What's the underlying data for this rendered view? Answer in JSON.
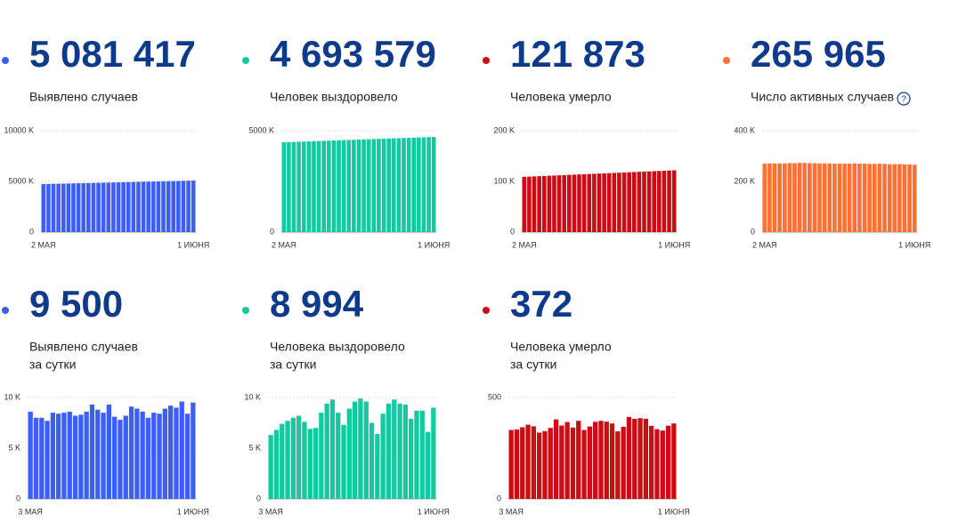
{
  "chart_data": [
    {
      "type": "bar",
      "value": "5 081 417",
      "label": [
        "Выявлено случаев"
      ],
      "color": "#3b5ef6",
      "categories": [
        "2 МАЯ",
        null,
        null,
        null,
        null,
        null,
        null,
        null,
        null,
        null,
        null,
        null,
        null,
        null,
        null,
        null,
        null,
        null,
        null,
        null,
        null,
        null,
        null,
        null,
        null,
        null,
        null,
        null,
        null,
        null,
        "1 ИЮНЯ"
      ],
      "values": [
        4737,
        4748,
        4760,
        4771,
        4783,
        4794,
        4806,
        4817,
        4829,
        4840,
        4852,
        4863,
        4875,
        4886,
        4898,
        4909,
        4921,
        4932,
        4944,
        4955,
        4967,
        4978,
        4990,
        5001,
        5013,
        5024,
        5036,
        5047,
        5059,
        5070,
        5081
      ],
      "ylim": [
        0,
        10000
      ],
      "yticks": [
        0,
        {
          "value": 5000,
          "label": "5000 K"
        },
        {
          "value": 10000,
          "label": "10000 K"
        }
      ],
      "grid": true
    },
    {
      "type": "bar",
      "value": "4 693 579",
      "label": [
        "Человек выздоровело"
      ],
      "color": "#13c9a1",
      "categories": [
        "2 МАЯ",
        null,
        null,
        null,
        null,
        null,
        null,
        null,
        null,
        null,
        null,
        null,
        null,
        null,
        null,
        null,
        null,
        null,
        null,
        null,
        null,
        null,
        null,
        null,
        null,
        null,
        null,
        null,
        null,
        null,
        "1 ИЮНЯ"
      ],
      "values": [
        4430,
        4439,
        4448,
        4456,
        4465,
        4474,
        4483,
        4492,
        4500,
        4509,
        4518,
        4527,
        4536,
        4544,
        4553,
        4562,
        4571,
        4580,
        4588,
        4597,
        4606,
        4615,
        4624,
        4632,
        4641,
        4650,
        4659,
        4668,
        4676,
        4685,
        4694
      ],
      "ylim": [
        0,
        5000
      ],
      "yticks": [
        0,
        {
          "value": 5000,
          "label": "5000 K"
        }
      ],
      "grid": true
    },
    {
      "type": "bar",
      "value": "121 873",
      "label": [
        "Человека умерло"
      ],
      "color": "#cc0b13",
      "categories": [
        "2 МАЯ",
        null,
        null,
        null,
        null,
        null,
        null,
        null,
        null,
        null,
        null,
        null,
        null,
        null,
        null,
        null,
        null,
        null,
        null,
        null,
        null,
        null,
        null,
        null,
        null,
        null,
        null,
        null,
        null,
        null,
        "1 ИЮНЯ"
      ],
      "values": [
        109.0,
        109.4,
        109.9,
        110.3,
        110.7,
        111.2,
        111.6,
        112.0,
        112.4,
        112.9,
        113.3,
        113.7,
        114.2,
        114.6,
        115.0,
        115.5,
        115.9,
        116.3,
        116.7,
        117.2,
        117.6,
        118.0,
        118.5,
        118.9,
        119.3,
        119.8,
        120.2,
        120.6,
        121.0,
        121.5,
        121.9
      ],
      "ylim": [
        0,
        200
      ],
      "yticks": [
        0,
        {
          "value": 100,
          "label": "100 K"
        },
        {
          "value": 200,
          "label": "200 K"
        }
      ],
      "grid": true
    },
    {
      "type": "bar",
      "value": "265 965",
      "label": [
        "Число активных случаев"
      ],
      "info_icon": "?",
      "color": "#ff7034",
      "categories": [
        "2 МАЯ",
        null,
        null,
        null,
        null,
        null,
        null,
        null,
        null,
        null,
        null,
        null,
        null,
        null,
        null,
        null,
        null,
        null,
        null,
        null,
        null,
        null,
        null,
        null,
        null,
        null,
        null,
        null,
        null,
        null,
        "1 ИЮНЯ"
      ],
      "values": [
        270,
        271,
        271,
        271,
        271,
        272,
        272,
        273,
        273,
        272,
        272,
        271,
        271,
        271,
        270,
        270,
        270,
        270,
        271,
        270,
        270,
        269,
        269,
        270,
        269,
        268,
        268,
        268,
        267,
        267,
        266
      ],
      "ylim": [
        0,
        400
      ],
      "yticks": [
        0,
        {
          "value": 200,
          "label": "200 K"
        },
        {
          "value": 400,
          "label": "400 K"
        }
      ],
      "grid": true
    },
    {
      "type": "bar",
      "value": "9 500",
      "label": [
        "Выявлено случаев",
        "за сутки"
      ],
      "color": "#3b5ef6",
      "categories": [
        "3 МАЯ",
        null,
        null,
        null,
        null,
        null,
        null,
        null,
        null,
        null,
        null,
        null,
        null,
        null,
        null,
        null,
        null,
        null,
        null,
        null,
        null,
        null,
        null,
        null,
        null,
        null,
        null,
        null,
        null,
        "1 ИЮНЯ"
      ],
      "values": [
        8.6,
        8.0,
        8.0,
        7.7,
        8.5,
        8.4,
        8.5,
        8.6,
        8.2,
        8.3,
        8.6,
        9.3,
        8.8,
        8.5,
        9.3,
        8.1,
        7.8,
        8.2,
        9.1,
        8.9,
        8.6,
        8.0,
        8.5,
        8.4,
        8.9,
        9.2,
        9.0,
        9.6,
        8.4,
        9.5
      ],
      "ylim": [
        0,
        10
      ],
      "yticks": [
        0,
        {
          "value": 5,
          "label": "5 K"
        },
        {
          "value": 10,
          "label": "10 K"
        }
      ],
      "grid": true
    },
    {
      "type": "bar",
      "value": "8 994",
      "label": [
        "Человека выздоровело",
        "за сутки"
      ],
      "color": "#13c9a1",
      "categories": [
        "3 МАЯ",
        null,
        null,
        null,
        null,
        null,
        null,
        null,
        null,
        null,
        null,
        null,
        null,
        null,
        null,
        null,
        null,
        null,
        null,
        null,
        null,
        null,
        null,
        null,
        null,
        null,
        null,
        null,
        null,
        "1 ИЮНЯ"
      ],
      "values": [
        6.3,
        6.8,
        7.4,
        7.7,
        8.0,
        8.2,
        7.6,
        6.9,
        7.0,
        8.5,
        9.4,
        9.8,
        8.5,
        7.3,
        8.9,
        9.6,
        9.9,
        9.6,
        7.5,
        6.4,
        8.4,
        9.4,
        9.8,
        9.4,
        9.3,
        7.9,
        8.7,
        8.7,
        6.6,
        9.0
      ],
      "ylim": [
        0,
        10
      ],
      "yticks": [
        0,
        {
          "value": 5,
          "label": "5 K"
        },
        {
          "value": 10,
          "label": "10 K"
        }
      ],
      "grid": true
    },
    {
      "type": "bar",
      "value": "372",
      "label": [
        "Человека умерло",
        "за сутки"
      ],
      "color": "#cc0b13",
      "categories": [
        "3 МАЯ",
        null,
        null,
        null,
        null,
        null,
        null,
        null,
        null,
        null,
        null,
        null,
        null,
        null,
        null,
        null,
        null,
        null,
        null,
        null,
        null,
        null,
        null,
        null,
        null,
        null,
        null,
        null,
        null,
        "1 ИЮНЯ"
      ],
      "values": [
        340,
        342,
        353,
        366,
        358,
        327,
        334,
        350,
        392,
        362,
        379,
        352,
        385,
        340,
        357,
        380,
        385,
        381,
        372,
        333,
        356,
        404,
        395,
        398,
        395,
        360,
        344,
        337,
        361,
        372
      ],
      "ylim": [
        0,
        500
      ],
      "yticks": [
        0,
        500
      ],
      "grid": true
    }
  ]
}
